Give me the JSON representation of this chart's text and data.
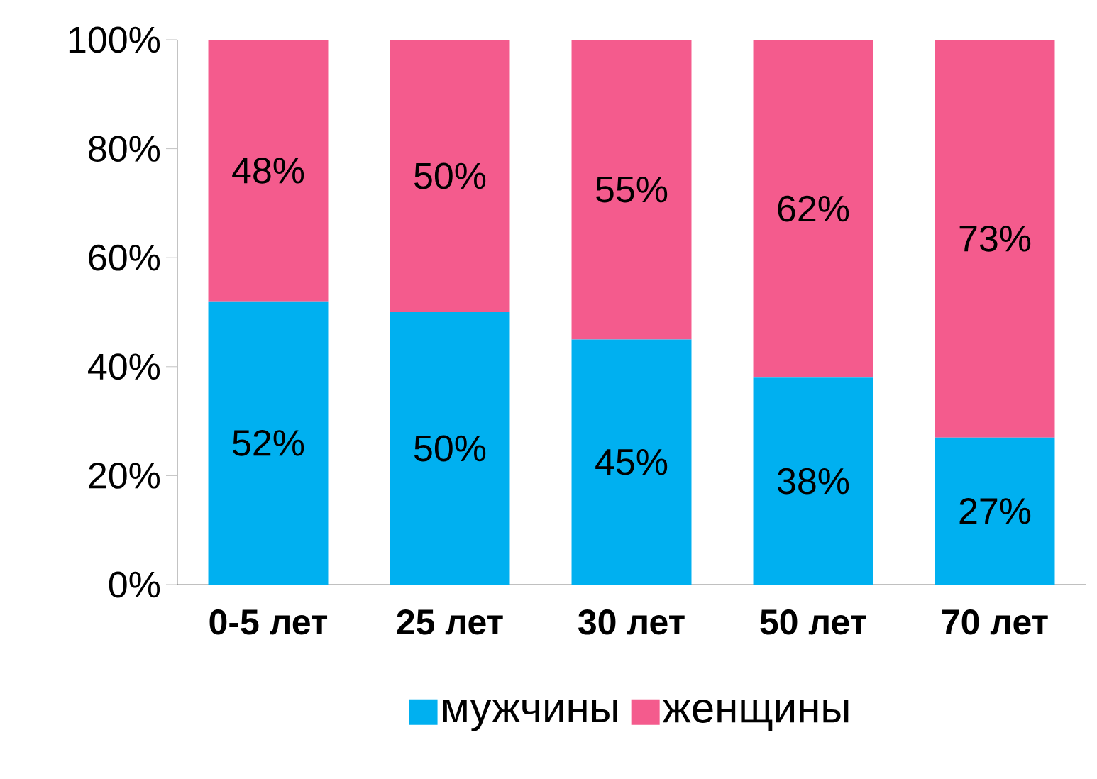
{
  "chart_data": {
    "type": "bar",
    "stacked": true,
    "categories": [
      "0-5 лет",
      "25 лет",
      "30 лет",
      "50 лет",
      "70 лет"
    ],
    "series": [
      {
        "name": "мужчины",
        "color": "#00b0f0",
        "values": [
          52,
          50,
          45,
          38,
          27
        ],
        "value_labels": [
          "52%",
          "50%",
          "45%",
          "38%",
          "27%"
        ]
      },
      {
        "name": "женщины",
        "color": "#f45b8d",
        "values": [
          48,
          50,
          55,
          62,
          73
        ],
        "value_labels": [
          "48%",
          "50%",
          "55%",
          "62%",
          "73%"
        ]
      }
    ],
    "ylim": [
      0,
      100
    ],
    "yticks": [
      {
        "value": 0,
        "label": "0%"
      },
      {
        "value": 20,
        "label": "20%"
      },
      {
        "value": 40,
        "label": "40%"
      },
      {
        "value": 60,
        "label": "60%"
      },
      {
        "value": 80,
        "label": "80%"
      },
      {
        "value": 100,
        "label": "100%"
      }
    ],
    "grid": false,
    "legend": "bottom"
  }
}
